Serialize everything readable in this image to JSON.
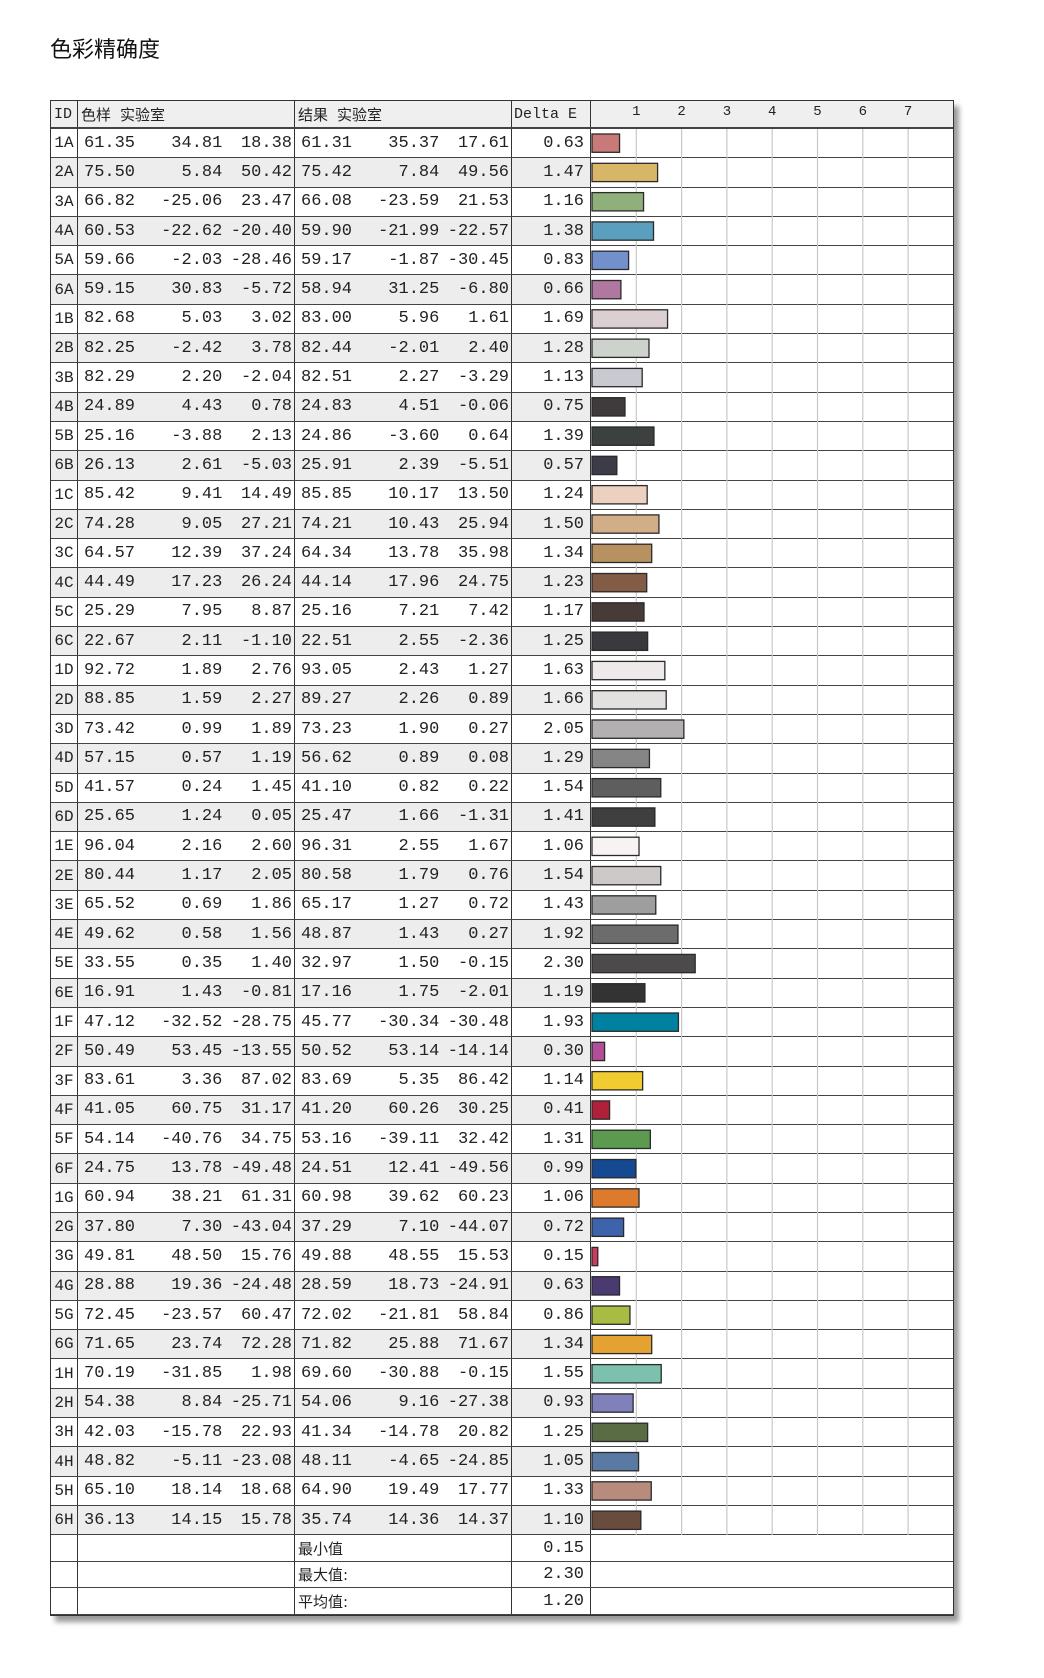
{
  "title": "色彩精确度",
  "header": {
    "id": "ID",
    "sample": "色样 实验室",
    "result": "结果 实验室",
    "delta": "Delta E"
  },
  "summary": [
    {
      "label": "最小值",
      "value": "0.15"
    },
    {
      "label": "最大值:",
      "value": "2.30"
    },
    {
      "label": "平均值:",
      "value": "1.20"
    }
  ],
  "chart_data": {
    "type": "bar",
    "orientation": "horizontal",
    "xlim": [
      0,
      8
    ],
    "ticks": [
      "1",
      "2",
      "3",
      "4",
      "5",
      "6",
      "7"
    ],
    "grid": true,
    "categories": [
      "1A",
      "2A",
      "3A",
      "4A",
      "5A",
      "6A",
      "1B",
      "2B",
      "3B",
      "4B",
      "5B",
      "6B",
      "1C",
      "2C",
      "3C",
      "4C",
      "5C",
      "6C",
      "1D",
      "2D",
      "3D",
      "4D",
      "5D",
      "6D",
      "1E",
      "2E",
      "3E",
      "4E",
      "5E",
      "6E",
      "1F",
      "2F",
      "3F",
      "4F",
      "5F",
      "6F",
      "1G",
      "2G",
      "3G",
      "4G",
      "5G",
      "6G",
      "1H",
      "2H",
      "3H",
      "4H",
      "5H",
      "6H"
    ],
    "values": [
      0.63,
      1.47,
      1.16,
      1.38,
      0.83,
      0.66,
      1.69,
      1.28,
      1.13,
      0.75,
      1.39,
      0.57,
      1.24,
      1.5,
      1.34,
      1.23,
      1.17,
      1.25,
      1.63,
      1.66,
      2.05,
      1.29,
      1.54,
      1.41,
      1.06,
      1.54,
      1.43,
      1.92,
      2.3,
      1.19,
      1.93,
      0.3,
      1.14,
      0.41,
      1.31,
      0.99,
      1.06,
      0.72,
      0.15,
      0.63,
      0.86,
      1.34,
      1.55,
      0.93,
      1.25,
      1.05,
      1.33,
      1.1
    ],
    "colors": [
      "#c87a78",
      "#d8b668",
      "#8fb07a",
      "#5a9fbd",
      "#7290cc",
      "#b078a0",
      "#dccfd2",
      "#ced2cd",
      "#c9c9d1",
      "#3f3a3c",
      "#3c403f",
      "#3c3c48",
      "#ecd0c0",
      "#d2ae88",
      "#b89160",
      "#825c44",
      "#473b37",
      "#3a3a3e",
      "#efeaea",
      "#e3e0e0",
      "#b3b0b2",
      "#858585",
      "#5e5e5e",
      "#3f3f40",
      "#f7f3f2",
      "#ccc9c8",
      "#9e9e9e",
      "#6c6c6c",
      "#4c4a4a",
      "#333333",
      "#0081a0",
      "#b04e98",
      "#f0cc30",
      "#b02038",
      "#5c9a50",
      "#154a92",
      "#de7a2c",
      "#3d63ad",
      "#cc3a5e",
      "#4a3a70",
      "#a8bc44",
      "#e4a232",
      "#7cc0ae",
      "#8080ba",
      "#5a6c44",
      "#5a7aa4",
      "#b88c7c",
      "#6a4c3e"
    ]
  },
  "rows": [
    [
      "1A",
      "61.35",
      "34.81",
      "18.38",
      "61.31",
      "35.37",
      "17.61",
      "0.63"
    ],
    [
      "2A",
      "75.50",
      "5.84",
      "50.42",
      "75.42",
      "7.84",
      "49.56",
      "1.47"
    ],
    [
      "3A",
      "66.82",
      "-25.06",
      "23.47",
      "66.08",
      "-23.59",
      "21.53",
      "1.16"
    ],
    [
      "4A",
      "60.53",
      "-22.62",
      "-20.40",
      "59.90",
      "-21.99",
      "-22.57",
      "1.38"
    ],
    [
      "5A",
      "59.66",
      "-2.03",
      "-28.46",
      "59.17",
      "-1.87",
      "-30.45",
      "0.83"
    ],
    [
      "6A",
      "59.15",
      "30.83",
      "-5.72",
      "58.94",
      "31.25",
      "-6.80",
      "0.66"
    ],
    [
      "1B",
      "82.68",
      "5.03",
      "3.02",
      "83.00",
      "5.96",
      "1.61",
      "1.69"
    ],
    [
      "2B",
      "82.25",
      "-2.42",
      "3.78",
      "82.44",
      "-2.01",
      "2.40",
      "1.28"
    ],
    [
      "3B",
      "82.29",
      "2.20",
      "-2.04",
      "82.51",
      "2.27",
      "-3.29",
      "1.13"
    ],
    [
      "4B",
      "24.89",
      "4.43",
      "0.78",
      "24.83",
      "4.51",
      "-0.06",
      "0.75"
    ],
    [
      "5B",
      "25.16",
      "-3.88",
      "2.13",
      "24.86",
      "-3.60",
      "0.64",
      "1.39"
    ],
    [
      "6B",
      "26.13",
      "2.61",
      "-5.03",
      "25.91",
      "2.39",
      "-5.51",
      "0.57"
    ],
    [
      "1C",
      "85.42",
      "9.41",
      "14.49",
      "85.85",
      "10.17",
      "13.50",
      "1.24"
    ],
    [
      "2C",
      "74.28",
      "9.05",
      "27.21",
      "74.21",
      "10.43",
      "25.94",
      "1.50"
    ],
    [
      "3C",
      "64.57",
      "12.39",
      "37.24",
      "64.34",
      "13.78",
      "35.98",
      "1.34"
    ],
    [
      "4C",
      "44.49",
      "17.23",
      "26.24",
      "44.14",
      "17.96",
      "24.75",
      "1.23"
    ],
    [
      "5C",
      "25.29",
      "7.95",
      "8.87",
      "25.16",
      "7.21",
      "7.42",
      "1.17"
    ],
    [
      "6C",
      "22.67",
      "2.11",
      "-1.10",
      "22.51",
      "2.55",
      "-2.36",
      "1.25"
    ],
    [
      "1D",
      "92.72",
      "1.89",
      "2.76",
      "93.05",
      "2.43",
      "1.27",
      "1.63"
    ],
    [
      "2D",
      "88.85",
      "1.59",
      "2.27",
      "89.27",
      "2.26",
      "0.89",
      "1.66"
    ],
    [
      "3D",
      "73.42",
      "0.99",
      "1.89",
      "73.23",
      "1.90",
      "0.27",
      "2.05"
    ],
    [
      "4D",
      "57.15",
      "0.57",
      "1.19",
      "56.62",
      "0.89",
      "0.08",
      "1.29"
    ],
    [
      "5D",
      "41.57",
      "0.24",
      "1.45",
      "41.10",
      "0.82",
      "0.22",
      "1.54"
    ],
    [
      "6D",
      "25.65",
      "1.24",
      "0.05",
      "25.47",
      "1.66",
      "-1.31",
      "1.41"
    ],
    [
      "1E",
      "96.04",
      "2.16",
      "2.60",
      "96.31",
      "2.55",
      "1.67",
      "1.06"
    ],
    [
      "2E",
      "80.44",
      "1.17",
      "2.05",
      "80.58",
      "1.79",
      "0.76",
      "1.54"
    ],
    [
      "3E",
      "65.52",
      "0.69",
      "1.86",
      "65.17",
      "1.27",
      "0.72",
      "1.43"
    ],
    [
      "4E",
      "49.62",
      "0.58",
      "1.56",
      "48.87",
      "1.43",
      "0.27",
      "1.92"
    ],
    [
      "5E",
      "33.55",
      "0.35",
      "1.40",
      "32.97",
      "1.50",
      "-0.15",
      "2.30"
    ],
    [
      "6E",
      "16.91",
      "1.43",
      "-0.81",
      "17.16",
      "1.75",
      "-2.01",
      "1.19"
    ],
    [
      "1F",
      "47.12",
      "-32.52",
      "-28.75",
      "45.77",
      "-30.34",
      "-30.48",
      "1.93"
    ],
    [
      "2F",
      "50.49",
      "53.45",
      "-13.55",
      "50.52",
      "53.14",
      "-14.14",
      "0.30"
    ],
    [
      "3F",
      "83.61",
      "3.36",
      "87.02",
      "83.69",
      "5.35",
      "86.42",
      "1.14"
    ],
    [
      "4F",
      "41.05",
      "60.75",
      "31.17",
      "41.20",
      "60.26",
      "30.25",
      "0.41"
    ],
    [
      "5F",
      "54.14",
      "-40.76",
      "34.75",
      "53.16",
      "-39.11",
      "32.42",
      "1.31"
    ],
    [
      "6F",
      "24.75",
      "13.78",
      "-49.48",
      "24.51",
      "12.41",
      "-49.56",
      "0.99"
    ],
    [
      "1G",
      "60.94",
      "38.21",
      "61.31",
      "60.98",
      "39.62",
      "60.23",
      "1.06"
    ],
    [
      "2G",
      "37.80",
      "7.30",
      "-43.04",
      "37.29",
      "7.10",
      "-44.07",
      "0.72"
    ],
    [
      "3G",
      "49.81",
      "48.50",
      "15.76",
      "49.88",
      "48.55",
      "15.53",
      "0.15"
    ],
    [
      "4G",
      "28.88",
      "19.36",
      "-24.48",
      "28.59",
      "18.73",
      "-24.91",
      "0.63"
    ],
    [
      "5G",
      "72.45",
      "-23.57",
      "60.47",
      "72.02",
      "-21.81",
      "58.84",
      "0.86"
    ],
    [
      "6G",
      "71.65",
      "23.74",
      "72.28",
      "71.82",
      "25.88",
      "71.67",
      "1.34"
    ],
    [
      "1H",
      "70.19",
      "-31.85",
      "1.98",
      "69.60",
      "-30.88",
      "-0.15",
      "1.55"
    ],
    [
      "2H",
      "54.38",
      "8.84",
      "-25.71",
      "54.06",
      "9.16",
      "-27.38",
      "0.93"
    ],
    [
      "3H",
      "42.03",
      "-15.78",
      "22.93",
      "41.34",
      "-14.78",
      "20.82",
      "1.25"
    ],
    [
      "4H",
      "48.82",
      "-5.11",
      "-23.08",
      "48.11",
      "-4.65",
      "-24.85",
      "1.05"
    ],
    [
      "5H",
      "65.10",
      "18.14",
      "18.68",
      "64.90",
      "19.49",
      "17.77",
      "1.33"
    ],
    [
      "6H",
      "36.13",
      "14.15",
      "15.78",
      "35.74",
      "14.36",
      "14.37",
      "1.10"
    ]
  ]
}
